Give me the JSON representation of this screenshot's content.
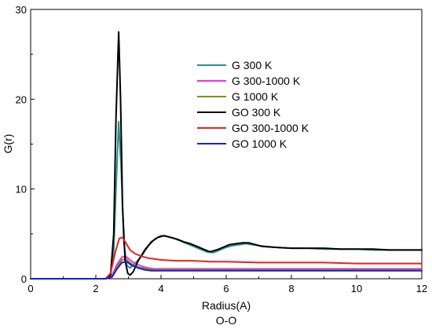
{
  "chart_data": {
    "type": "line",
    "title": "",
    "subtitle": "O-O",
    "xlabel": "Radius(A)",
    "ylabel": "G(r)",
    "xlim": [
      0,
      12
    ],
    "ylim": [
      0,
      30
    ],
    "xticks": [
      0,
      2,
      4,
      6,
      8,
      10,
      12
    ],
    "yticks": [
      0,
      10,
      20,
      30
    ],
    "grid": false,
    "legend_position": "upper-center",
    "series": [
      {
        "name": "G 300 K",
        "color": "#2a8f8f",
        "x": [
          0,
          2.3,
          2.45,
          2.55,
          2.62,
          2.7,
          2.78,
          2.86,
          2.95,
          3.05,
          3.2,
          3.4,
          3.6,
          3.8,
          4.0,
          4.2,
          4.4,
          4.6,
          4.8,
          5.0,
          5.2,
          5.4,
          5.6,
          5.8,
          6.0,
          6.2,
          6.4,
          6.6,
          6.8,
          7.0,
          7.2,
          7.5,
          8.0,
          8.5,
          9.0,
          9.5,
          10.0,
          10.5,
          11.0,
          11.5,
          12.0
        ],
        "y": [
          0,
          0,
          0.3,
          3.0,
          10.0,
          17.5,
          12.0,
          4.0,
          1.5,
          1.2,
          1.7,
          2.5,
          3.6,
          4.4,
          4.8,
          4.7,
          4.5,
          4.2,
          3.9,
          3.6,
          3.3,
          3.0,
          2.9,
          3.2,
          3.5,
          3.7,
          3.8,
          3.9,
          3.8,
          3.7,
          3.6,
          3.5,
          3.4,
          3.4,
          3.3,
          3.3,
          3.3,
          3.2,
          3.2,
          3.2,
          3.2
        ]
      },
      {
        "name": "G 300-1000 K",
        "color": "#e832e8",
        "x": [
          0,
          2.3,
          2.5,
          2.65,
          2.8,
          2.92,
          3.05,
          3.2,
          3.4,
          3.6,
          3.8,
          4.0,
          5.0,
          6.0,
          7.0,
          8.0,
          9.0,
          10.0,
          11.0,
          12.0
        ],
        "y": [
          0,
          0,
          0.4,
          1.6,
          2.4,
          2.5,
          2.1,
          1.7,
          1.4,
          1.2,
          1.1,
          1.1,
          1.1,
          1.1,
          1.1,
          1.1,
          1.1,
          1.1,
          1.1,
          1.1
        ]
      },
      {
        "name": "G 1000 K",
        "color": "#8b8b00",
        "x": [
          0,
          2.3,
          2.5,
          2.65,
          2.8,
          2.92,
          3.05,
          3.2,
          3.4,
          3.6,
          3.8,
          4.0,
          5.0,
          6.0,
          7.0,
          8.0,
          9.0,
          10.0,
          11.0,
          12.0
        ],
        "y": [
          0,
          0,
          0.3,
          1.3,
          2.1,
          2.2,
          1.8,
          1.4,
          1.2,
          1.1,
          1.0,
          1.0,
          1.0,
          1.0,
          1.0,
          1.0,
          1.0,
          1.0,
          1.0,
          1.0
        ]
      },
      {
        "name": "GO 300 K",
        "color": "#000000",
        "x": [
          0,
          2.3,
          2.45,
          2.55,
          2.62,
          2.7,
          2.76,
          2.82,
          2.9,
          2.98,
          3.05,
          3.15,
          3.3,
          3.5,
          3.7,
          3.9,
          4.1,
          4.3,
          4.5,
          4.7,
          4.9,
          5.1,
          5.3,
          5.5,
          5.7,
          5.9,
          6.1,
          6.3,
          6.5,
          6.7,
          6.9,
          7.1,
          7.5,
          8.0,
          8.5,
          9.0,
          9.5,
          10.0,
          10.5,
          11.0,
          11.5,
          12.0
        ],
        "y": [
          0,
          0,
          0.4,
          5.0,
          18.0,
          27.5,
          20.0,
          8.0,
          2.0,
          0.6,
          0.4,
          0.8,
          2.0,
          3.2,
          4.1,
          4.6,
          4.8,
          4.6,
          4.4,
          4.1,
          3.9,
          3.6,
          3.3,
          3.0,
          3.2,
          3.5,
          3.8,
          3.9,
          4.0,
          4.0,
          3.8,
          3.6,
          3.5,
          3.4,
          3.4,
          3.4,
          3.3,
          3.3,
          3.3,
          3.2,
          3.2,
          3.2
        ]
      },
      {
        "name": "GO 300-1000 K",
        "color": "#e8231e",
        "x": [
          0,
          2.3,
          2.45,
          2.6,
          2.72,
          2.82,
          2.92,
          3.05,
          3.2,
          3.4,
          3.6,
          3.8,
          4.0,
          4.5,
          5.0,
          5.5,
          6.0,
          7.0,
          8.0,
          9.0,
          10.0,
          11.0,
          12.0
        ],
        "y": [
          0,
          0,
          0.6,
          3.0,
          4.5,
          4.6,
          4.0,
          3.2,
          2.8,
          2.5,
          2.3,
          2.2,
          2.1,
          2.0,
          2.0,
          1.9,
          1.9,
          1.8,
          1.8,
          1.8,
          1.7,
          1.7,
          1.7
        ]
      },
      {
        "name": "GO 1000 K",
        "color": "#1c1cd8",
        "x": [
          0,
          2.3,
          2.5,
          2.65,
          2.8,
          2.95,
          3.1,
          3.3,
          3.5,
          3.7,
          3.9,
          4.1,
          5.0,
          6.0,
          7.0,
          8.0,
          9.0,
          10.0,
          11.0,
          12.0
        ],
        "y": [
          0,
          0,
          0.2,
          1.1,
          1.8,
          1.9,
          1.5,
          1.2,
          1.0,
          0.9,
          0.9,
          0.9,
          0.9,
          0.9,
          0.9,
          0.9,
          0.9,
          0.9,
          0.9,
          0.9
        ]
      }
    ]
  }
}
